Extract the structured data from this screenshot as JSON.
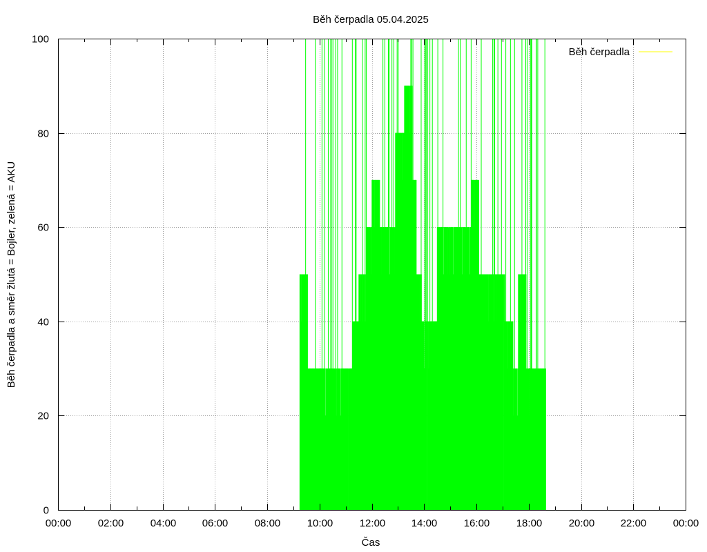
{
  "chart_data": {
    "type": "area",
    "title": "Běh čerpadla 05.04.2025",
    "xlabel": "Čas",
    "ylabel": "Běh čerpadla a směr žlutá = Bojler, zelená = AKU",
    "xlim": [
      0,
      24
    ],
    "ylim": [
      0,
      100
    ],
    "x_tick_labels": [
      "00:00",
      "02:00",
      "04:00",
      "06:00",
      "08:00",
      "10:00",
      "12:00",
      "14:00",
      "16:00",
      "18:00",
      "20:00",
      "22:00",
      "00:00"
    ],
    "y_tick_labels": [
      "0",
      "20",
      "40",
      "60",
      "80",
      "100"
    ],
    "grid": true,
    "legend": {
      "position": "top-right",
      "entries": [
        {
          "name": "Běh čerpadla",
          "color": "#ffff00"
        }
      ]
    },
    "series": [
      {
        "name": "AKU",
        "color": "#00ff00",
        "style": "impulses",
        "x_unit": "hours",
        "activity_envelope": {
          "x": [
            9.25,
            9.55,
            9.95,
            10.5,
            11.25,
            11.5,
            11.8,
            12.0,
            12.3,
            12.6,
            12.9,
            13.1,
            13.25,
            13.4,
            13.55,
            13.7,
            13.9,
            14.1,
            14.5,
            14.9,
            15.2,
            15.5,
            15.8,
            16.1,
            16.4,
            16.8,
            17.1,
            17.4,
            17.6,
            17.9,
            18.2,
            18.5,
            18.65
          ],
          "y": [
            50,
            30,
            30,
            30,
            40,
            50,
            60,
            70,
            60,
            60,
            80,
            80,
            90,
            90,
            70,
            50,
            40,
            40,
            60,
            60,
            60,
            60,
            70,
            50,
            50,
            50,
            40,
            30,
            50,
            30,
            30,
            30,
            40
          ]
        }
      }
    ]
  }
}
